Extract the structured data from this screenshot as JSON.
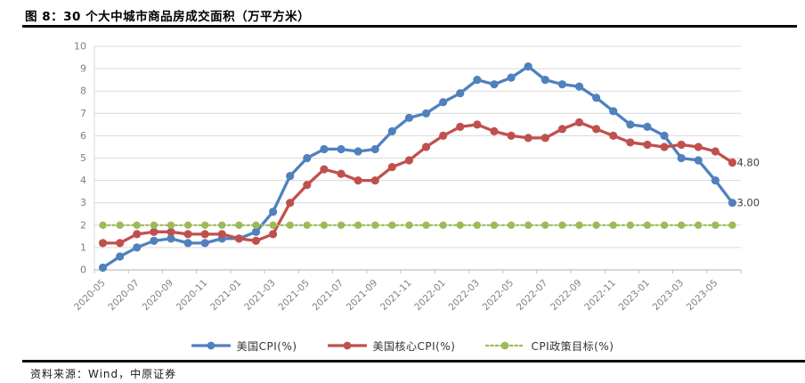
{
  "figure": {
    "title": "图 8：30 个大中城市商品房成交面积（万平方米）"
  },
  "footer": {
    "source": "资料来源：Wind，中原证券"
  },
  "chart_data": {
    "type": "line",
    "title": "",
    "xlabel": "",
    "ylabel": "",
    "ylim": [
      0,
      10
    ],
    "y_ticks": [
      0,
      1,
      2,
      3,
      4,
      5,
      6,
      7,
      8,
      9,
      10
    ],
    "grid": true,
    "legend_position": "bottom",
    "x": [
      "2020-05",
      "2020-06",
      "2020-07",
      "2020-08",
      "2020-09",
      "2020-10",
      "2020-11",
      "2020-12",
      "2021-01",
      "2021-02",
      "2021-03",
      "2021-04",
      "2021-05",
      "2021-06",
      "2021-07",
      "2021-08",
      "2021-09",
      "2021-10",
      "2021-11",
      "2021-12",
      "2022-01",
      "2022-02",
      "2022-03",
      "2022-04",
      "2022-05",
      "2022-06",
      "2022-07",
      "2022-08",
      "2022-09",
      "2022-10",
      "2022-11",
      "2022-12",
      "2023-01",
      "2023-02",
      "2023-03",
      "2023-04",
      "2023-05",
      "2023-06"
    ],
    "x_tick_labels": [
      "2020-05",
      "2020-07",
      "2020-09",
      "2020-11",
      "2021-01",
      "2021-03",
      "2021-05",
      "2021-07",
      "2021-09",
      "2021-11",
      "2022-01",
      "2022-03",
      "2022-05",
      "2022-07",
      "2022-09",
      "2022-11",
      "2023-01",
      "2023-03",
      "2023-05"
    ],
    "series": [
      {
        "key": "us-cpi",
        "name": "美国CPI(%)",
        "color": "#4F81BD",
        "style": "solid",
        "end_label": "3.00",
        "values": [
          0.1,
          0.6,
          1.0,
          1.3,
          1.4,
          1.2,
          1.2,
          1.4,
          1.4,
          1.7,
          2.6,
          4.2,
          5.0,
          5.4,
          5.4,
          5.3,
          5.4,
          6.2,
          6.8,
          7.0,
          7.5,
          7.9,
          8.5,
          8.3,
          8.6,
          9.1,
          8.5,
          8.3,
          8.2,
          7.7,
          7.1,
          6.5,
          6.4,
          6.0,
          5.0,
          4.9,
          4.0,
          3.0
        ]
      },
      {
        "key": "us-core-cpi",
        "name": "美国核心CPI(%)",
        "color": "#C0504D",
        "style": "solid",
        "end_label": "4.80",
        "values": [
          1.2,
          1.2,
          1.6,
          1.7,
          1.7,
          1.6,
          1.6,
          1.6,
          1.4,
          1.3,
          1.6,
          3.0,
          3.8,
          4.5,
          4.3,
          4.0,
          4.0,
          4.6,
          4.9,
          5.5,
          6.0,
          6.4,
          6.5,
          6.2,
          6.0,
          5.9,
          5.9,
          6.3,
          6.6,
          6.3,
          6.0,
          5.7,
          5.6,
          5.5,
          5.6,
          5.5,
          5.3,
          4.8
        ]
      },
      {
        "key": "cpi-target",
        "name": "CPI政策目标(%)",
        "color": "#9BBB59",
        "style": "dotted",
        "end_label": "",
        "values": [
          2,
          2,
          2,
          2,
          2,
          2,
          2,
          2,
          2,
          2,
          2,
          2,
          2,
          2,
          2,
          2,
          2,
          2,
          2,
          2,
          2,
          2,
          2,
          2,
          2,
          2,
          2,
          2,
          2,
          2,
          2,
          2,
          2,
          2,
          2,
          2,
          2,
          2
        ]
      }
    ]
  }
}
